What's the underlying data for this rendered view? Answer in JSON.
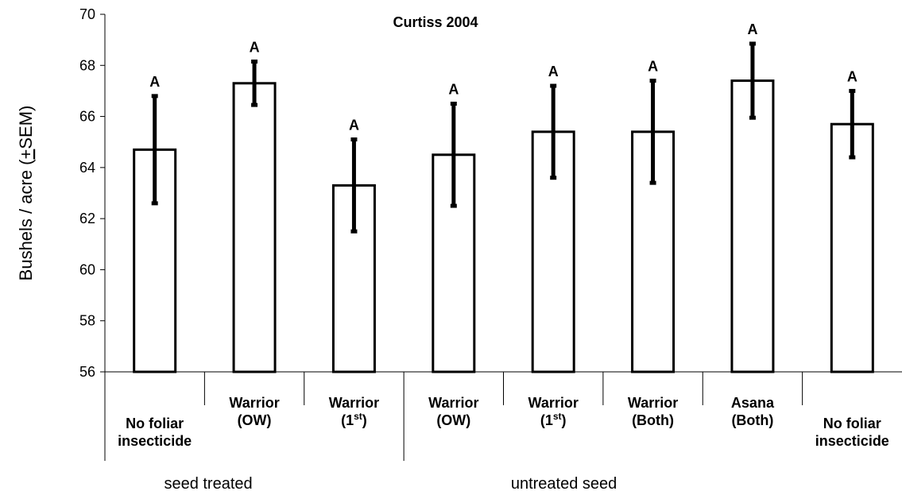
{
  "chart_data": {
    "type": "bar",
    "title": "Curtiss 2004",
    "ylabel": {
      "before": "Bushels / acre (",
      "underlined": "+",
      "after": "SEM)"
    },
    "categories": [
      [
        "No foliar",
        "insecticide"
      ],
      [
        "Warrior",
        "(OW)"
      ],
      [
        "Warrior",
        {
          "text": "(1",
          "sup": "st",
          "after": ")"
        }
      ],
      [
        "Warrior",
        "(OW)"
      ],
      [
        "Warrior",
        {
          "text": "(1",
          "sup": "st",
          "after": ")"
        }
      ],
      [
        "Warrior",
        "(Both)"
      ],
      [
        "Asana",
        "(Both)"
      ],
      [
        "No foliar",
        "insecticide"
      ]
    ],
    "values": [
      64.7,
      67.3,
      63.3,
      64.5,
      65.4,
      65.4,
      67.4,
      65.7
    ],
    "errors": [
      2.1,
      0.85,
      1.8,
      2.0,
      1.8,
      2.0,
      1.45,
      1.3
    ],
    "letters": [
      "A",
      "A",
      "A",
      "A",
      "A",
      "A",
      "A",
      "A"
    ],
    "groups": [
      {
        "label": "seed treated",
        "count": 3
      },
      {
        "label": "untreated seed",
        "count": 5
      }
    ],
    "color": "#ffffff",
    "ylim": [
      56,
      70
    ],
    "yticks": [
      56,
      58,
      60,
      62,
      64,
      66,
      68,
      70
    ],
    "grid": false
  }
}
